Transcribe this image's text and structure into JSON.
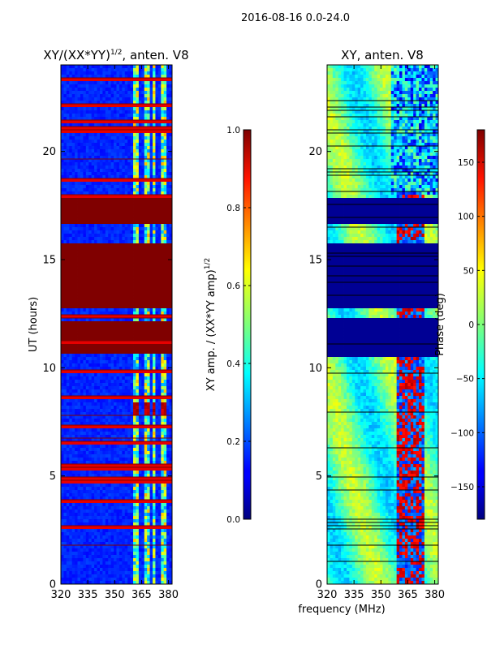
{
  "figure": {
    "suptitle": "2016-08-16 0.0-24.0",
    "xlabel": "frequency (MHz)"
  },
  "chart_data": [
    {
      "type": "heatmap",
      "title": "XY/(XX*YY)^1/2, anten. V8",
      "title_main": "XY/(XX*YY)",
      "title_sup": "1/2",
      "title_tail": ", anten. V8",
      "ylabel": "UT (hours)",
      "xlim": [
        320,
        382
      ],
      "ylim": [
        0,
        24
      ],
      "xticks": [
        320,
        335,
        350,
        365,
        380
      ],
      "yticks": [
        0,
        5,
        10,
        15,
        20
      ],
      "colorbar": {
        "label": "XY amp. / (XX*YY amp)^1/2",
        "label_main": "XY amp. / (XX*YY amp)",
        "label_sup": "1/2",
        "range": [
          0.0,
          1.0
        ],
        "ticks": [
          "0.0",
          "0.2",
          "0.4",
          "0.6",
          "0.8",
          "1.0"
        ],
        "tick_values": [
          0,
          0.2,
          0.4,
          0.6,
          0.8,
          1.0
        ],
        "colormap": "jet"
      },
      "saturated_ut_bands": [
        [
          10.6,
          11.1
        ],
        [
          11.3,
          12.2
        ],
        [
          12.7,
          15.7
        ],
        [
          16.7,
          17.9
        ]
      ],
      "bright_frequency_bands": [
        [
          361,
          363
        ],
        [
          366,
          369
        ],
        [
          371,
          373
        ],
        [
          376,
          379
        ]
      ],
      "peak_feature": {
        "ut": [
          7.8,
          8.4
        ],
        "value": 0.9
      }
    },
    {
      "type": "heatmap",
      "title": "XY, anten. V8",
      "ylabel": "",
      "xlim": [
        320,
        382
      ],
      "ylim": [
        0,
        24
      ],
      "xticks": [
        320,
        335,
        350,
        365,
        380
      ],
      "yticks": [
        0,
        5,
        10,
        15,
        20
      ],
      "colorbar": {
        "label": "Phase (deg)",
        "range": [
          -180,
          180
        ],
        "ticks": [
          "150",
          "100",
          "50",
          "0",
          "−50",
          "−100",
          "−150"
        ],
        "tick_values": [
          150,
          100,
          50,
          0,
          -50,
          -100,
          -150
        ],
        "colormap": "jet"
      },
      "saturated_ut_bands": [
        [
          10.5,
          12.3
        ],
        [
          12.7,
          15.7
        ],
        [
          16.7,
          17.8
        ]
      ]
    }
  ]
}
